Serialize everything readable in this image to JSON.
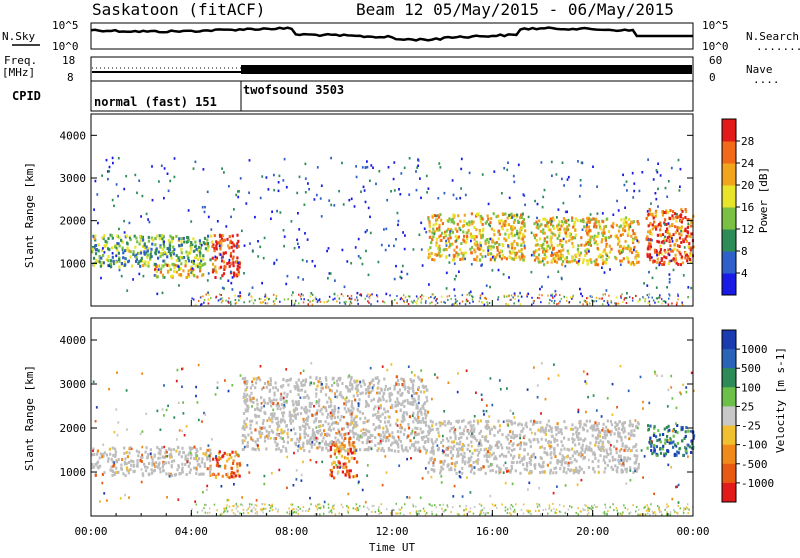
{
  "header": {
    "station": "Saskatoon (fitACF)",
    "beam_info": "Beam 12 05/May/2015 - 06/May/2015"
  },
  "top_panel": {
    "left_label": "N.Sky",
    "left_ticks": [
      "10^5",
      "10^0"
    ],
    "right_ticks": [
      "10^5",
      "10^0"
    ],
    "right_label": "N.Search",
    "right_legend": "........"
  },
  "freq_panel": {
    "left_label_1": "Freq.",
    "left_label_2": "[MHz]",
    "left_ticks": [
      "18",
      "8"
    ],
    "right_ticks": [
      "60",
      "0"
    ],
    "right_label": "Nave",
    "right_legend": "...."
  },
  "cpid_panel": {
    "label": "CPID",
    "mode1": "normal (fast) 151",
    "mode2": "twofsound 3503"
  },
  "colors": {
    "power": [
      "#1a1ae6",
      "#2f5fc8",
      "#2e8c57",
      "#79c043",
      "#e8e42a",
      "#f0a51c",
      "#f06a1a",
      "#e31a1a"
    ],
    "velocity": [
      "#1a3cb0",
      "#2a63b8",
      "#2e8a57",
      "#6cc04a",
      "#c8c8c8",
      "#f0c030",
      "#f08a1a",
      "#e85a12",
      "#e31a1a"
    ],
    "ground": "#bdbdbd"
  },
  "chart_data": [
    {
      "type": "heatmap",
      "name": "power",
      "ylabel": "Slant Range [km]",
      "yticks": [
        "1000",
        "2000",
        "3000",
        "4000"
      ],
      "ylim": [
        0,
        4500
      ],
      "xlim": [
        0,
        24
      ],
      "colorbar": {
        "label": "Power [dB]",
        "ticks": [
          "4",
          "8",
          "12",
          "16",
          "20",
          "24",
          "28"
        ],
        "range": [
          0,
          30
        ]
      },
      "bands": [
        {
          "t0": 0,
          "t1": 4.8,
          "r0": 950,
          "r1": 1700,
          "level": 12
        },
        {
          "t0": 2.5,
          "t1": 4.5,
          "r0": 700,
          "r1": 1000,
          "level": 20
        },
        {
          "t0": 4.8,
          "t1": 5.9,
          "r0": 700,
          "r1": 1700,
          "level": 27
        },
        {
          "t0": 13.4,
          "t1": 17.3,
          "r0": 1100,
          "r1": 2200,
          "level": 18
        },
        {
          "t0": 17.6,
          "t1": 21.8,
          "r0": 1000,
          "r1": 2100,
          "level": 19
        },
        {
          "t0": 22.1,
          "t1": 24,
          "r0": 1000,
          "r1": 2300,
          "level": 25
        }
      ]
    },
    {
      "type": "heatmap",
      "name": "velocity",
      "ylabel": "Slant Range [km]",
      "yticks": [
        "1000",
        "2000",
        "3000",
        "4000"
      ],
      "ylim": [
        0,
        4500
      ],
      "xlim": [
        0,
        24
      ],
      "colorbar": {
        "label": "Velocity [m s-1]",
        "ticks": [
          "1000",
          "500",
          "100",
          "25",
          "-25",
          "-100",
          "-500",
          "-1000"
        ],
        "range": [
          -1200,
          1200
        ]
      },
      "bands": [
        {
          "t0": 0,
          "t1": 4.8,
          "r0": 950,
          "r1": 1600,
          "kind": "ground"
        },
        {
          "t0": 4.8,
          "t1": 5.9,
          "r0": 900,
          "r1": 1500,
          "kind": "neg"
        },
        {
          "t0": 6,
          "t1": 13.4,
          "r0": 1500,
          "r1": 3200,
          "kind": "ground"
        },
        {
          "t0": 9.5,
          "t1": 10.6,
          "r0": 900,
          "r1": 1800,
          "kind": "neg"
        },
        {
          "t0": 13.4,
          "t1": 21.8,
          "r0": 1000,
          "r1": 2200,
          "kind": "ground"
        },
        {
          "t0": 22.1,
          "t1": 24,
          "r0": 1400,
          "r1": 2100,
          "kind": "pos"
        }
      ]
    }
  ],
  "x_axis": {
    "ticks": [
      "00:00",
      "04:00",
      "08:00",
      "12:00",
      "16:00",
      "20:00",
      "00:00"
    ],
    "label": "Time UT"
  }
}
